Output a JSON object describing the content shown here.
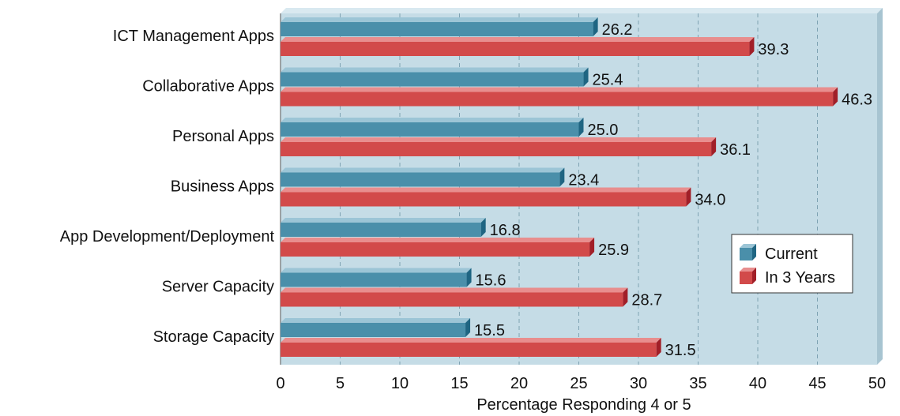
{
  "colors": {
    "current": "#4A8FAA",
    "current_top": "#9CC5D6",
    "current_side": "#1F6582",
    "future": "#D24A4A",
    "future_top": "#E88E8E",
    "future_side": "#A11F28",
    "plot_bg": "#C5DCE6",
    "grid": "#7FA3B3"
  },
  "chart_data": {
    "type": "bar",
    "orientation": "horizontal",
    "categories": [
      "ICT Management Apps",
      "Collaborative Apps",
      "Personal Apps",
      "Business Apps",
      "App Development/Deployment",
      "Server Capacity",
      "Storage Capacity"
    ],
    "series": [
      {
        "name": "Current",
        "values": [
          26.2,
          25.4,
          25.0,
          23.4,
          16.8,
          15.6,
          15.5
        ],
        "labels": [
          "26.2",
          "25.4",
          "25.0",
          "23.4",
          "16.8",
          "15.6",
          "15.5"
        ]
      },
      {
        "name": "In 3 Years",
        "values": [
          39.3,
          46.3,
          36.1,
          34.0,
          25.9,
          28.7,
          31.5
        ],
        "labels": [
          "39.3",
          "46.3",
          "36.1",
          "34.0",
          "25.9",
          "28.7",
          "31.5"
        ]
      }
    ],
    "xlabel": "Percentage Responding 4 or 5",
    "xlim": [
      0,
      50
    ],
    "xticks": [
      "0",
      "5",
      "10",
      "15",
      "20",
      "25",
      "30",
      "35",
      "40",
      "45",
      "50"
    ],
    "grid": true,
    "legend_position": "right"
  }
}
